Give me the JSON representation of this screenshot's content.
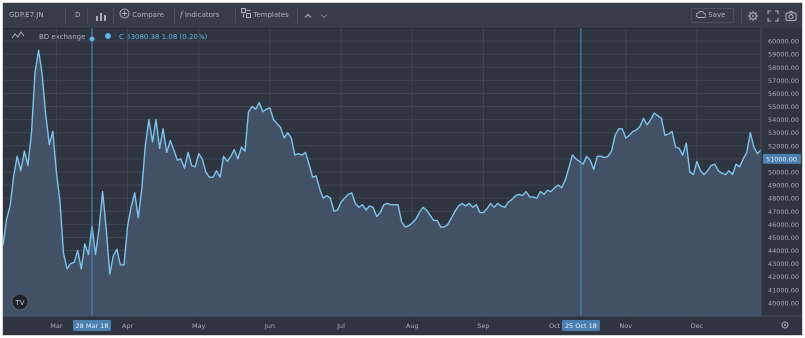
{
  "toolbar": {
    "symbol": "GDP.E7.JN",
    "interval": "D",
    "compare": "Compare",
    "indicators": "Indicators",
    "templates": "Templates",
    "save": "Save"
  },
  "legend": {
    "symbol": "BD exchange",
    "ohlc": "C 53080.38 1.08 (0.20%)"
  },
  "colors": {
    "background": "#2e3440",
    "line": "#7ec3ea",
    "area": "#45576c",
    "grid": "#3f4552",
    "axis_text": "#a7afbb",
    "crosshair": "#4f8fc9",
    "highlight": "#4a7fb0"
  },
  "chart_data": {
    "type": "area",
    "x_months": [
      "Mar",
      "Apr",
      "May",
      "Jun",
      "Jul",
      "Aug",
      "Sep",
      "Oct",
      "Nov",
      "Dec"
    ],
    "x_range": [
      0.25,
      10.9
    ],
    "ylim": [
      39000,
      61000
    ],
    "y_ticks": [
      60000.0,
      59000.0,
      58000.0,
      57000.0,
      56000.0,
      55000.0,
      54000.0,
      53000.0,
      52000.0,
      51000.0,
      50000.0,
      49000.0,
      48000.0,
      47000.0,
      46000.0,
      45000.0,
      44000.0,
      43000.0,
      42000.0,
      41000.0,
      40000.0
    ],
    "current_price": "51000.00",
    "crosshair_dates": [
      "28 Mar 18",
      "25 Oct 18"
    ],
    "crosshair_x": [
      1.5,
      8.37
    ],
    "points": [
      [
        0.25,
        44.4
      ],
      [
        0.3,
        46.4
      ],
      [
        0.35,
        47.4
      ],
      [
        0.4,
        49.7
      ],
      [
        0.45,
        51.2
      ],
      [
        0.5,
        50.1
      ],
      [
        0.55,
        51.6
      ],
      [
        0.6,
        50.5
      ],
      [
        0.65,
        53.0
      ],
      [
        0.7,
        57.6
      ],
      [
        0.75,
        59.3
      ],
      [
        0.8,
        57.5
      ],
      [
        0.85,
        54.4
      ],
      [
        0.9,
        52.1
      ],
      [
        0.95,
        53.1
      ],
      [
        1.0,
        50.0
      ],
      [
        1.05,
        47.8
      ],
      [
        1.1,
        43.8
      ],
      [
        1.15,
        42.6
      ],
      [
        1.2,
        43.0
      ],
      [
        1.25,
        43.1
      ],
      [
        1.3,
        44.0
      ],
      [
        1.35,
        42.6
      ],
      [
        1.4,
        44.5
      ],
      [
        1.45,
        43.7
      ],
      [
        1.5,
        45.9
      ],
      [
        1.55,
        43.7
      ],
      [
        1.6,
        45.7
      ],
      [
        1.65,
        48.5
      ],
      [
        1.7,
        45.7
      ],
      [
        1.75,
        42.2
      ],
      [
        1.8,
        43.6
      ],
      [
        1.85,
        44.1
      ],
      [
        1.9,
        42.9
      ],
      [
        1.95,
        42.9
      ],
      [
        2.0,
        45.9
      ],
      [
        2.05,
        47.3
      ],
      [
        2.1,
        48.4
      ],
      [
        2.15,
        46.5
      ],
      [
        2.2,
        48.7
      ],
      [
        2.25,
        52.0
      ],
      [
        2.3,
        54.0
      ],
      [
        2.35,
        52.3
      ],
      [
        2.4,
        54.0
      ],
      [
        2.45,
        51.8
      ],
      [
        2.5,
        53.3
      ],
      [
        2.55,
        51.5
      ],
      [
        2.6,
        52.4
      ],
      [
        2.65,
        51.7
      ],
      [
        2.7,
        50.9
      ],
      [
        2.75,
        51.0
      ],
      [
        2.8,
        50.3
      ],
      [
        2.85,
        51.5
      ],
      [
        2.9,
        50.5
      ],
      [
        2.95,
        50.4
      ],
      [
        3.0,
        51.4
      ],
      [
        3.05,
        51.0
      ],
      [
        3.1,
        50.0
      ],
      [
        3.15,
        49.6
      ],
      [
        3.2,
        49.6
      ],
      [
        3.25,
        50.1
      ],
      [
        3.3,
        49.6
      ],
      [
        3.35,
        51.2
      ],
      [
        3.4,
        50.8
      ],
      [
        3.45,
        51.2
      ],
      [
        3.5,
        51.7
      ],
      [
        3.55,
        51.0
      ],
      [
        3.6,
        51.9
      ],
      [
        3.65,
        51.6
      ],
      [
        3.7,
        54.6
      ],
      [
        3.75,
        55.0
      ],
      [
        3.8,
        54.8
      ],
      [
        3.85,
        55.3
      ],
      [
        3.9,
        54.6
      ],
      [
        3.95,
        54.8
      ],
      [
        4.0,
        54.9
      ],
      [
        4.05,
        54.0
      ],
      [
        4.1,
        53.7
      ],
      [
        4.15,
        53.4
      ],
      [
        4.2,
        52.6
      ],
      [
        4.25,
        53.0
      ],
      [
        4.3,
        52.6
      ],
      [
        4.35,
        51.3
      ],
      [
        4.4,
        51.4
      ],
      [
        4.45,
        51.3
      ],
      [
        4.5,
        51.5
      ],
      [
        4.55,
        50.6
      ],
      [
        4.6,
        49.6
      ],
      [
        4.65,
        49.7
      ],
      [
        4.7,
        48.7
      ],
      [
        4.75,
        48.0
      ],
      [
        4.8,
        48.2
      ],
      [
        4.85,
        48.0
      ],
      [
        4.9,
        47.0
      ],
      [
        4.95,
        47.1
      ],
      [
        5.0,
        47.7
      ],
      [
        5.05,
        48.0
      ],
      [
        5.1,
        48.3
      ],
      [
        5.15,
        48.4
      ],
      [
        5.2,
        47.6
      ],
      [
        5.25,
        47.3
      ],
      [
        5.3,
        47.5
      ],
      [
        5.35,
        47.1
      ],
      [
        5.4,
        47.4
      ],
      [
        5.45,
        47.3
      ],
      [
        5.5,
        46.6
      ],
      [
        5.55,
        46.9
      ],
      [
        5.6,
        47.5
      ],
      [
        5.65,
        47.6
      ],
      [
        5.7,
        47.5
      ],
      [
        5.75,
        47.5
      ],
      [
        5.8,
        47.5
      ],
      [
        5.85,
        46.2
      ],
      [
        5.9,
        45.8
      ],
      [
        5.95,
        45.9
      ],
      [
        6.0,
        46.1
      ],
      [
        6.05,
        46.4
      ],
      [
        6.1,
        46.9
      ],
      [
        6.15,
        47.3
      ],
      [
        6.2,
        47.1
      ],
      [
        6.25,
        46.7
      ],
      [
        6.3,
        46.3
      ],
      [
        6.35,
        46.3
      ],
      [
        6.4,
        45.8
      ],
      [
        6.45,
        45.8
      ],
      [
        6.5,
        46.0
      ],
      [
        6.55,
        46.5
      ],
      [
        6.6,
        47.0
      ],
      [
        6.65,
        47.4
      ],
      [
        6.7,
        47.6
      ],
      [
        6.75,
        47.4
      ],
      [
        6.8,
        47.6
      ],
      [
        6.85,
        47.3
      ],
      [
        6.9,
        47.5
      ],
      [
        6.95,
        46.9
      ],
      [
        7.0,
        46.9
      ],
      [
        7.05,
        47.2
      ],
      [
        7.1,
        47.6
      ],
      [
        7.15,
        47.3
      ],
      [
        7.2,
        47.6
      ],
      [
        7.25,
        47.4
      ],
      [
        7.3,
        47.3
      ],
      [
        7.35,
        47.7
      ],
      [
        7.4,
        47.9
      ],
      [
        7.45,
        48.2
      ],
      [
        7.5,
        48.3
      ],
      [
        7.55,
        48.2
      ],
      [
        7.6,
        48.5
      ],
      [
        7.65,
        48.1
      ],
      [
        7.7,
        48.1
      ],
      [
        7.75,
        48.0
      ],
      [
        7.8,
        48.5
      ],
      [
        7.85,
        48.3
      ],
      [
        7.9,
        48.6
      ],
      [
        7.95,
        48.5
      ],
      [
        8.0,
        48.8
      ],
      [
        8.05,
        49.0
      ],
      [
        8.1,
        48.8
      ],
      [
        8.15,
        49.4
      ],
      [
        8.2,
        50.3
      ],
      [
        8.25,
        51.3
      ],
      [
        8.3,
        51.0
      ],
      [
        8.35,
        50.8
      ],
      [
        8.4,
        50.6
      ],
      [
        8.45,
        51.2
      ],
      [
        8.5,
        50.9
      ],
      [
        8.55,
        50.2
      ],
      [
        8.6,
        51.2
      ],
      [
        8.65,
        51.2
      ],
      [
        8.7,
        51.1
      ],
      [
        8.75,
        51.2
      ],
      [
        8.8,
        51.6
      ],
      [
        8.85,
        52.8
      ],
      [
        8.9,
        53.3
      ],
      [
        8.95,
        53.3
      ],
      [
        9.0,
        52.6
      ],
      [
        9.05,
        52.8
      ],
      [
        9.1,
        53.1
      ],
      [
        9.15,
        53.2
      ],
      [
        9.2,
        53.5
      ],
      [
        9.25,
        54.1
      ],
      [
        9.3,
        53.6
      ],
      [
        9.35,
        54.0
      ],
      [
        9.4,
        54.5
      ],
      [
        9.45,
        54.3
      ],
      [
        9.5,
        54.1
      ],
      [
        9.55,
        52.8
      ],
      [
        9.6,
        52.9
      ],
      [
        9.65,
        53.1
      ],
      [
        9.7,
        51.9
      ],
      [
        9.75,
        51.8
      ],
      [
        9.8,
        51.3
      ],
      [
        9.85,
        52.2
      ],
      [
        9.9,
        50.0
      ],
      [
        9.95,
        49.8
      ],
      [
        10.0,
        50.8
      ],
      [
        10.05,
        50.1
      ],
      [
        10.1,
        49.8
      ],
      [
        10.15,
        50.1
      ],
      [
        10.2,
        50.5
      ],
      [
        10.25,
        50.6
      ],
      [
        10.3,
        50.1
      ],
      [
        10.35,
        49.9
      ],
      [
        10.4,
        49.8
      ],
      [
        10.45,
        50.1
      ],
      [
        10.5,
        49.8
      ],
      [
        10.55,
        50.6
      ],
      [
        10.6,
        50.4
      ],
      [
        10.65,
        51.0
      ],
      [
        10.7,
        51.5
      ],
      [
        10.75,
        53.0
      ],
      [
        10.8,
        51.9
      ],
      [
        10.85,
        51.4
      ],
      [
        10.9,
        51.7
      ]
    ]
  }
}
